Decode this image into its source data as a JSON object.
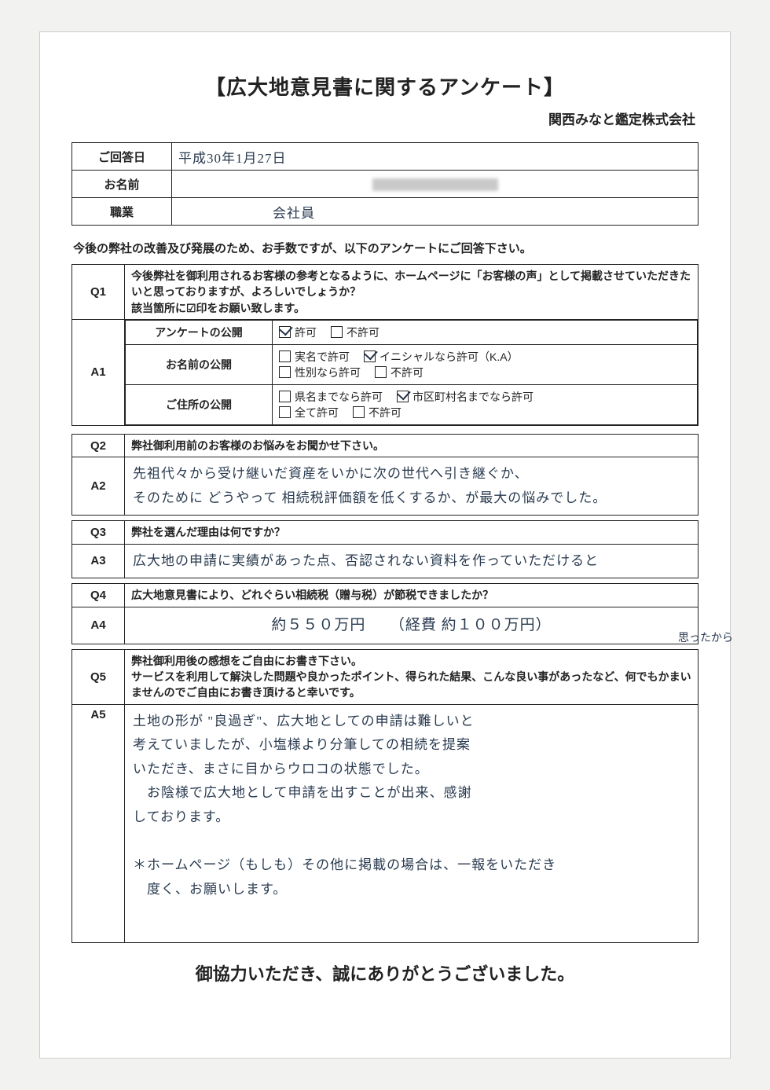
{
  "title": "【広大地意見書に関するアンケート】",
  "subtitle": "関西みなと鑑定株式会社",
  "info": {
    "date_label": "ご回答日",
    "date_value": "平成30年1月27日",
    "name_label": "お名前",
    "job_label": "職業",
    "job_value": "会社員"
  },
  "lead": "今後の弊社の改善及び発展のため、お手数ですが、以下のアンケートにご回答下さい。",
  "q1": {
    "num": "Q1",
    "text": "今後弊社を御利用されるお客様の参考となるように、ホームページに「お客様の声」として掲載させていただきたいと思っておりますが、よろしいでしょうか？\n該当箇所に☑印をお願い致します。"
  },
  "a1": {
    "num": "A1",
    "rows": [
      {
        "label": "アンケートの公開",
        "opts": [
          [
            "許可",
            true
          ],
          [
            "不許可",
            false
          ]
        ]
      },
      {
        "label": "お名前の公開",
        "opts": [
          [
            "実名で許可",
            false
          ],
          [
            "イニシャルなら許可（K.A）",
            true
          ],
          [
            "性別なら許可",
            false
          ],
          [
            "不許可",
            false
          ]
        ],
        "twoLines": true
      },
      {
        "label": "ご住所の公開",
        "opts": [
          [
            "県名までなら許可",
            false
          ],
          [
            "市区町村名までなら許可",
            true
          ],
          [
            "全て許可",
            false
          ],
          [
            "不許可",
            false
          ]
        ],
        "twoLines": true
      }
    ]
  },
  "q2": {
    "num": "Q2",
    "text": "弊社御利用前のお客様のお悩みをお聞かせ下さい。"
  },
  "a2": {
    "num": "A2",
    "text": "先祖代々から受け継いだ資産をいかに次の世代へ引き継ぐか、\nそのために どうやって 相続税評価額を低くするか、が最大の悩みでした。"
  },
  "q3": {
    "num": "Q3",
    "text": "弊社を選んだ理由は何ですか？"
  },
  "a3": {
    "num": "A3",
    "text": "広大地の申請に実績があった点、否認されない資料を作っていただけると"
  },
  "margin_note": "思ったから",
  "q4": {
    "num": "Q4",
    "text": "広大地意見書により、どれぐらい相続税（贈与税）が節税できましたか？"
  },
  "a4": {
    "num": "A4",
    "text": "約５５０万円　　（経費 約１００万円）"
  },
  "q5": {
    "num": "Q5",
    "text": "弊社御利用後の感想をご自由にお書き下さい。\nサービスを利用して解決した問題や良かったポイント、得られた結果、こんな良い事があったなど、何でもかまいませんのでご自由にお書き頂けると幸いです。"
  },
  "a5": {
    "num": "A5",
    "text": "土地の形が \"良過ぎ\"、広大地としての申請は難しいと\n考えていましたが、小塩様より分筆しての相続を提案\nいただき、まさに目からウロコの状態でした。\n　お陰様で広大地として申請を出すことが出来、感謝\nしております。\n\n＊ホームページ（もしも）その他に掲載の場合は、一報をいただき\n　度く、お願いします。"
  },
  "footer": "御協力いただき、誠にありがとうございました。"
}
